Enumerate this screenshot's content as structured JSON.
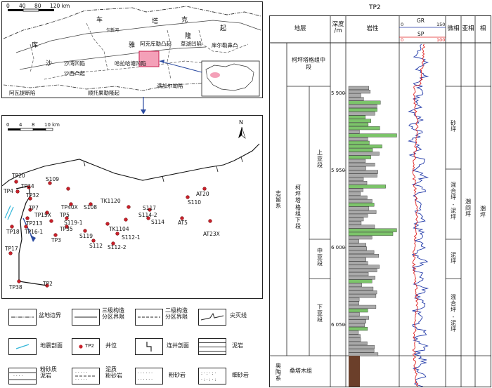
{
  "overview_map": {
    "scale": {
      "ticks": [
        "0",
        "40",
        "80",
        "120 km"
      ]
    },
    "labels": {
      "che": "车",
      "ta": "塔",
      "ku": "库",
      "ke": "克",
      "ya": "雅",
      "long": "隆",
      "qi": "起",
      "sha": "沙",
      "shawan": "沙湾凹陷",
      "shaxi": "沙西凸起",
      "awati": "阿瓦提断陷",
      "shuntuo": "顺托果勒隆起",
      "halahatang": "哈拉哈塘凹陷",
      "akekule": "阿克库勒凸起",
      "caohu": "草湖凹陷",
      "kuerle": "库尔勒鼻凸",
      "manjiaer": "满加尔坳陷",
      "xinhe": "乍新河"
    }
  },
  "detail_map": {
    "scale": {
      "ticks": [
        "0",
        "4",
        "8",
        "10 km"
      ]
    },
    "north": "N",
    "wells": [
      "TP20",
      "TP24",
      "S109",
      "TP4",
      "TP32",
      "TP7",
      "TP15X",
      "TP213",
      "TP5",
      "TP40X",
      "S108",
      "TP18",
      "TP16-1",
      "S119-1",
      "TP35",
      "TP3",
      "S119",
      "S112",
      "S112-1",
      "S112-2",
      "TK1104",
      "TK1120",
      "S117",
      "S114-2",
      "S114",
      "AT20",
      "S110",
      "AT5",
      "AT23X",
      "TP17",
      "TP38",
      "TP2"
    ]
  },
  "legend": {
    "basin_boundary": "盆地边界",
    "level3": "三级构造\n分区界限",
    "level2": "二级构造\n分区界限",
    "pinchout": "尖灭线",
    "seismic": "地震剖面",
    "well_sample": "TP2",
    "well": "井位",
    "well_section": "连井剖面",
    "mudstone": "泥岩",
    "silty_mudstone": "粉砂质\n泥岩",
    "muddy_siltstone": "泥质\n粉砂岩",
    "siltstone": "粉砂岩",
    "fine_sandstone": "细砂岩"
  },
  "column": {
    "title": "TP2",
    "headers": {
      "stratum": "地层",
      "depth": "深度\n/m",
      "lithology": "岩性",
      "microfacies": "微相",
      "subfacies": "亚相",
      "facies": "相"
    },
    "gr": {
      "label": "GR",
      "min": "0",
      "max": "150"
    },
    "sp": {
      "label": "SP",
      "min": "0",
      "max": "100"
    },
    "depths": [
      "5 900",
      "5 950",
      "6 000",
      "6 050"
    ],
    "system_zhiliu": "志留系",
    "system_aotao": "奥陶系",
    "formation_mid": "柯坪塔格组中段",
    "formation_low": "柯坪塔格组下段",
    "formation_sangtamu": "桑塔木组",
    "member_upper": "上亚段",
    "member_middle": "中亚段",
    "member_lower": "下亚段",
    "micro_sand": "砂坪",
    "micro_mixed1": "混合坪-泥坪",
    "micro_mud": "泥坪",
    "micro_mixed2": "混合坪-泥坪",
    "sub_intertidal": "潮间坪",
    "facies_tidal": "潮坪"
  },
  "colors": {
    "green": "#7cc46a",
    "gray": "#a9a9a9",
    "pink": "#f4a0b8",
    "well_red": "#c8202a",
    "gr_line": "#2038a8",
    "sp_line": "#e02020"
  }
}
